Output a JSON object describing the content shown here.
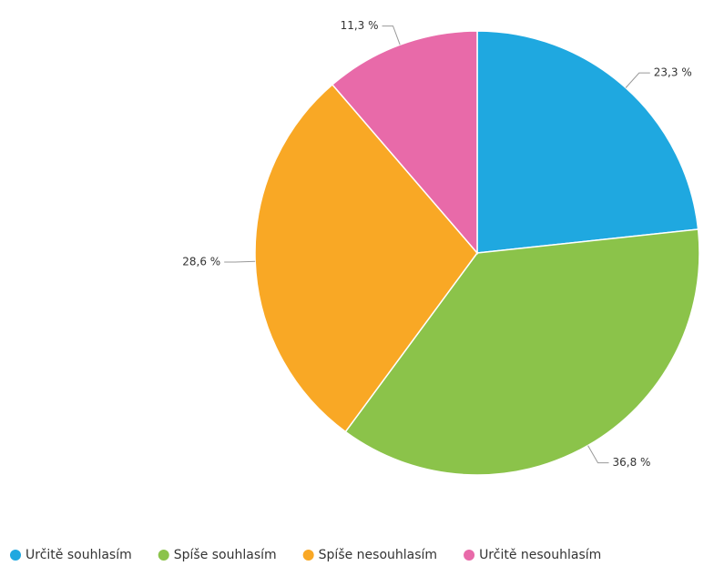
{
  "chart_data": {
    "type": "pie",
    "categories": [
      "Určitě souhlasím",
      "Spíše souhlasím",
      "Spíše nesouhlasím",
      "Určitě nesouhlasím"
    ],
    "values": [
      23.3,
      36.8,
      28.6,
      11.3
    ],
    "value_labels": [
      "23,3 %",
      "36,8 %",
      "28,6 %",
      "11,3 %"
    ],
    "colors": [
      "#1fa8e0",
      "#8bc34a",
      "#f9a825",
      "#e86aa9"
    ]
  }
}
